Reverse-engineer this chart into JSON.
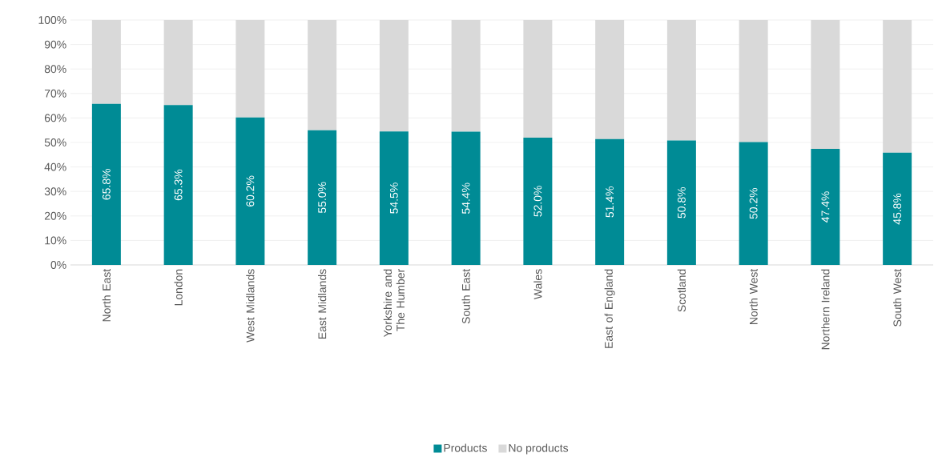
{
  "chart_data": {
    "type": "bar",
    "stacked": true,
    "categories": [
      "North East",
      "London",
      "West Midlands",
      "East Midlands",
      "Yorkshire and The Humber",
      "South East",
      "Wales",
      "East of England",
      "Scotland",
      "North West",
      "Northern Ireland",
      "South West"
    ],
    "series": [
      {
        "name": "Products",
        "color": "#008b95",
        "values": [
          65.8,
          65.3,
          60.2,
          55.0,
          54.5,
          54.4,
          52.0,
          51.4,
          50.8,
          50.2,
          47.4,
          45.8
        ],
        "value_labels": [
          "65.8%",
          "65.3%",
          "60.2%",
          "55.0%",
          "54.5%",
          "54.4%",
          "52.0%",
          "51.4%",
          "50.8%",
          "50.2%",
          "47.4%",
          "45.8%"
        ]
      },
      {
        "name": "No products",
        "color": "#d9d9d9",
        "values": [
          34.2,
          34.7,
          39.8,
          45.0,
          45.5,
          45.6,
          48.0,
          48.6,
          49.2,
          49.8,
          52.6,
          54.2
        ]
      }
    ],
    "ylim": [
      0,
      100
    ],
    "yticks": [
      {
        "value": 0,
        "label": "0%"
      },
      {
        "value": 10,
        "label": "10%"
      },
      {
        "value": 20,
        "label": "20%"
      },
      {
        "value": 30,
        "label": "30%"
      },
      {
        "value": 40,
        "label": "40%"
      },
      {
        "value": 50,
        "label": "50%"
      },
      {
        "value": 60,
        "label": "60%"
      },
      {
        "value": 70,
        "label": "70%"
      },
      {
        "value": 80,
        "label": "80%"
      },
      {
        "value": 90,
        "label": "90%"
      },
      {
        "value": 100,
        "label": "100%"
      }
    ],
    "grid": "y",
    "legend": "bottom"
  }
}
